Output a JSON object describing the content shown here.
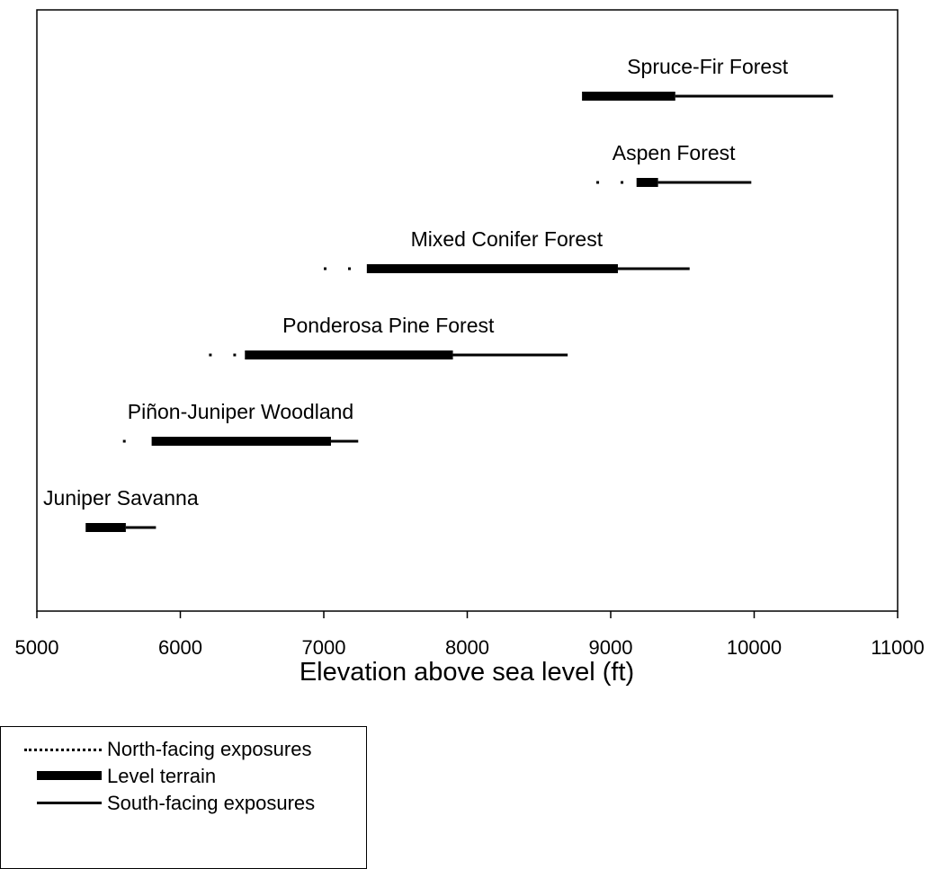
{
  "chart_data": {
    "type": "range",
    "xlabel": "Elevation above sea level (ft)",
    "xlim": [
      5000,
      11000
    ],
    "xticks": [
      5000,
      6000,
      7000,
      8000,
      9000,
      10000,
      11000
    ],
    "xtick_labels": [
      "5000",
      "6000",
      "7000",
      "8000",
      "9000",
      "10000",
      "11000"
    ],
    "grid": false,
    "legend_position": "bottom-left",
    "series": [
      {
        "name": "North-facing exposures",
        "style": "dotted"
      },
      {
        "name": "Level terrain",
        "style": "thick"
      },
      {
        "name": "South-facing exposures",
        "style": "thin"
      }
    ],
    "categories": [
      {
        "name": "Spruce-Fir Forest",
        "north": [],
        "level": [
          8800,
          9450
        ],
        "south": [
          9450,
          10550
        ]
      },
      {
        "name": "Aspen Forest",
        "north": [
          8900,
          9100
        ],
        "level": [
          9180,
          9330
        ],
        "south": [
          9330,
          9980
        ]
      },
      {
        "name": "Mixed Conifer Forest",
        "north": [
          7000,
          7250
        ],
        "level": [
          7300,
          9050
        ],
        "south": [
          9050,
          9550
        ]
      },
      {
        "name": "Ponderosa Pine Forest",
        "north": [
          6200,
          6400
        ],
        "level": [
          6450,
          7900
        ],
        "south": [
          7900,
          8700
        ]
      },
      {
        "name": "Piñon-Juniper Woodland",
        "north": [
          5600,
          5750
        ],
        "level": [
          5800,
          7050
        ],
        "south": [
          7050,
          7240
        ]
      },
      {
        "name": "Juniper Savanna",
        "north": [],
        "level": [
          5340,
          5620
        ],
        "south": [
          5620,
          5830
        ]
      }
    ]
  },
  "legend": {
    "north_label": "North-facing exposures",
    "level_label": "Level terrain",
    "south_label": "South-facing exposures"
  },
  "colors": {
    "ink": "#000000",
    "background": "#ffffff"
  }
}
